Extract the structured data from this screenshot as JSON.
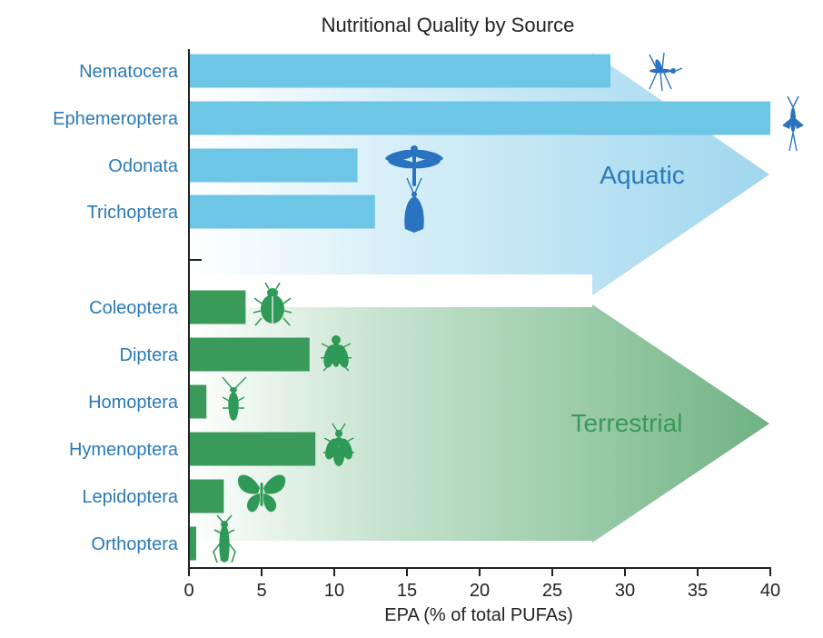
{
  "chart_data": {
    "type": "bar",
    "orientation": "horizontal",
    "title": "Nutritional Quality by Source",
    "xlabel": "EPA (% of total PUFAs)",
    "ylabel": "",
    "xlim": [
      0,
      40
    ],
    "xticks": [
      "0",
      "5",
      "10",
      "15",
      "20",
      "25",
      "30",
      "35",
      "40"
    ],
    "grid": false,
    "groups": [
      {
        "name": "Aquatic",
        "color": "#6ec6e6",
        "label_color": "#2a7ab8",
        "categories": [
          "Nematocera",
          "Ephemeroptera",
          "Odonata",
          "Trichoptera"
        ],
        "values": [
          29,
          40,
          11.6,
          12.8
        ],
        "icons": [
          "mosquito-icon",
          "mayfly-icon",
          "dragonfly-icon",
          "caddisfly-icon"
        ]
      },
      {
        "name": "Terrestrial",
        "color": "#3a9a5a",
        "label_color": "#3a9a5a",
        "categories": [
          "Coleoptera",
          "Diptera",
          "Homoptera",
          "Hymenoptera",
          "Lepidoptera",
          "Orthoptera"
        ],
        "values": [
          3.9,
          8.3,
          1.2,
          8.7,
          2.4,
          0.5
        ],
        "icons": [
          "beetle-icon",
          "fly-icon",
          "leafhopper-icon",
          "bee-icon",
          "butterfly-icon",
          "grasshopper-icon"
        ]
      }
    ]
  }
}
